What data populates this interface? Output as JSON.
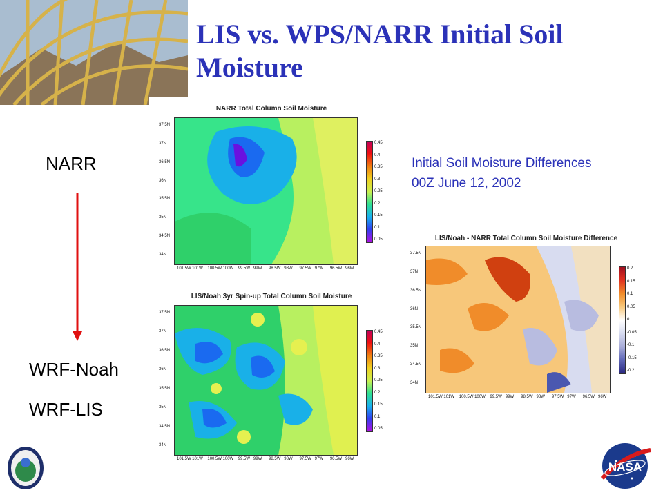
{
  "slide": {
    "title": "LIS vs. WPS/NARR Initial Soil Moisture",
    "labels": {
      "narr": "NARR",
      "wrf_noah": "WRF-Noah",
      "wrf_lis": "WRF-LIS"
    },
    "caption_line1": "Initial Soil Moisture Differences",
    "caption_line2": "00Z June 12, 2002",
    "colors": {
      "title": "#2b32b8",
      "arrow": "#e01010"
    }
  },
  "plots": {
    "narr": {
      "title": "NARR Total Column Soil Moisture",
      "colorbar": [
        "0.45",
        "0.4",
        "0.35",
        "0.3",
        "0.25",
        "0.2",
        "0.15",
        "0.1",
        "0.05"
      ]
    },
    "lis": {
      "title": "LIS/Noah 3yr Spin-up Total Column Soil Moisture",
      "colorbar": [
        "0.45",
        "0.4",
        "0.35",
        "0.3",
        "0.25",
        "0.2",
        "0.15",
        "0.1",
        "0.05"
      ]
    },
    "diff": {
      "title": "LIS/Noah - NARR Total Column Soil Moisture Difference",
      "colorbar": [
        "0.2",
        "0.15",
        "0.1",
        "0.05",
        "0",
        "-0.05",
        "-0.1",
        "-0.15",
        "-0.2"
      ]
    },
    "lat_ticks": [
      "37.5N",
      "37N",
      "36.5N",
      "36N",
      "35.5N",
      "35N",
      "34.5N",
      "34N"
    ],
    "lon_ticks": [
      "101.5W",
      "101W",
      "100.5W",
      "100W",
      "99.5W",
      "99W",
      "98.5W",
      "98W",
      "97.5W",
      "97W",
      "96.5W",
      "96W"
    ]
  },
  "logos": {
    "nasa": "NASA",
    "seal": "seal-icon"
  }
}
